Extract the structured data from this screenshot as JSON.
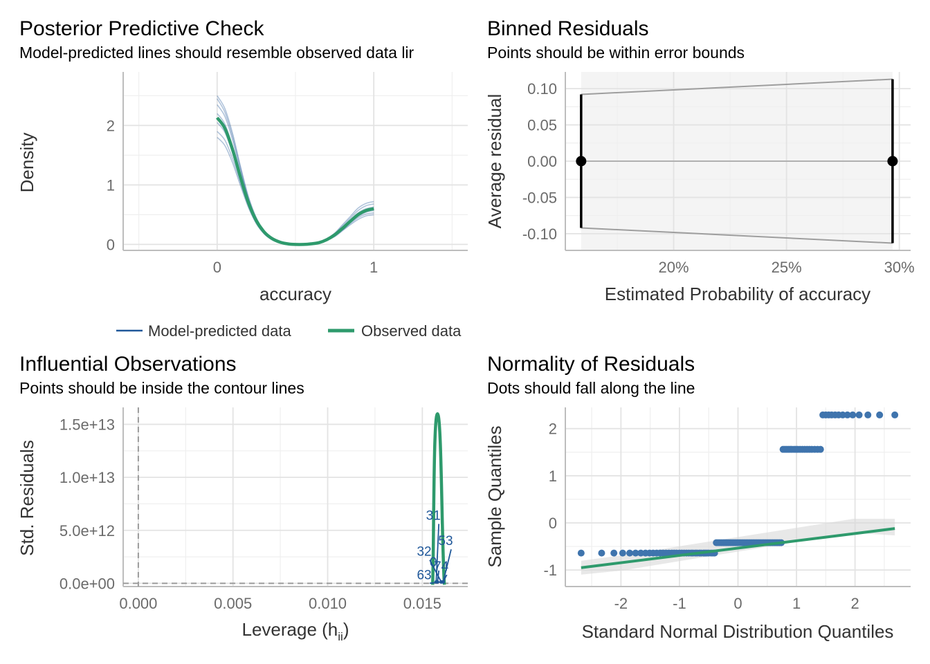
{
  "colors": {
    "model": "#1f5799",
    "observed": "#2e9a6c",
    "grid": "#e3e3e3",
    "axis": "#bdbdbd",
    "tick_text": "#6b6b6b",
    "bound": "#9e9e9e",
    "point": "#3f74ad"
  },
  "chart_data": [
    {
      "id": "ppc",
      "type": "line",
      "title": "Posterior Predictive Check",
      "subtitle": "Model-predicted lines should resemble observed data lir",
      "xlabel": "accuracy",
      "ylabel": "Density",
      "xlim": [
        -0.6,
        1.6
      ],
      "ylim": [
        -0.1,
        2.9
      ],
      "xticks": [
        0,
        1
      ],
      "yticks": [
        0,
        1,
        2
      ],
      "xtick_labels": [
        "0",
        "1"
      ],
      "ytick_labels": [
        "0",
        "1",
        "2"
      ],
      "legend": [
        "Model-predicted data",
        "Observed data"
      ],
      "legend_position": "bottom",
      "x": [
        0,
        0.05,
        0.1,
        0.15,
        0.2,
        0.25,
        0.3,
        0.35,
        0.4,
        0.45,
        0.5,
        0.55,
        0.6,
        0.65,
        0.7,
        0.75,
        0.8,
        0.85,
        0.9,
        0.95,
        1.0
      ],
      "series": [
        {
          "name": "Observed data",
          "values": [
            2.13,
            1.95,
            1.58,
            1.12,
            0.7,
            0.4,
            0.21,
            0.1,
            0.04,
            0.01,
            0.0,
            0.0,
            0.01,
            0.03,
            0.08,
            0.16,
            0.27,
            0.39,
            0.5,
            0.57,
            0.6
          ]
        },
        {
          "name": "Model-predicted data",
          "values": [
            2.5,
            2.28,
            1.85,
            1.3,
            0.8,
            0.45,
            0.22,
            0.1,
            0.04,
            0.01,
            0.0,
            0.0,
            0.01,
            0.03,
            0.07,
            0.14,
            0.24,
            0.35,
            0.45,
            0.51,
            0.53
          ]
        },
        {
          "name": "Model-predicted data",
          "values": [
            2.35,
            2.15,
            1.74,
            1.22,
            0.75,
            0.42,
            0.21,
            0.1,
            0.04,
            0.01,
            0.0,
            0.0,
            0.01,
            0.03,
            0.08,
            0.15,
            0.26,
            0.37,
            0.47,
            0.54,
            0.57
          ]
        },
        {
          "name": "Model-predicted data",
          "values": [
            2.2,
            2.02,
            1.63,
            1.15,
            0.71,
            0.4,
            0.2,
            0.09,
            0.04,
            0.01,
            0.0,
            0.0,
            0.01,
            0.03,
            0.08,
            0.16,
            0.27,
            0.39,
            0.5,
            0.57,
            0.6
          ]
        },
        {
          "name": "Model-predicted data",
          "values": [
            2.05,
            1.88,
            1.52,
            1.08,
            0.67,
            0.38,
            0.19,
            0.09,
            0.03,
            0.01,
            0.0,
            0.0,
            0.01,
            0.04,
            0.09,
            0.17,
            0.29,
            0.41,
            0.53,
            0.6,
            0.63
          ]
        },
        {
          "name": "Model-predicted data",
          "values": [
            1.9,
            1.75,
            1.43,
            1.02,
            0.64,
            0.36,
            0.18,
            0.08,
            0.03,
            0.01,
            0.0,
            0.0,
            0.01,
            0.04,
            0.09,
            0.18,
            0.31,
            0.44,
            0.57,
            0.65,
            0.68
          ]
        },
        {
          "name": "Model-predicted data",
          "values": [
            1.8,
            1.66,
            1.36,
            0.98,
            0.62,
            0.35,
            0.18,
            0.08,
            0.03,
            0.01,
            0.0,
            0.0,
            0.01,
            0.04,
            0.1,
            0.19,
            0.33,
            0.47,
            0.61,
            0.69,
            0.72
          ]
        },
        {
          "name": "Model-predicted data",
          "values": [
            2.45,
            2.22,
            1.8,
            1.27,
            0.78,
            0.43,
            0.21,
            0.1,
            0.04,
            0.01,
            0.0,
            0.0,
            0.01,
            0.03,
            0.07,
            0.13,
            0.23,
            0.33,
            0.42,
            0.48,
            0.5
          ]
        },
        {
          "name": "Model-predicted data",
          "values": [
            2.12,
            1.94,
            1.57,
            1.11,
            0.69,
            0.39,
            0.2,
            0.09,
            0.04,
            0.01,
            0.0,
            0.0,
            0.01,
            0.03,
            0.08,
            0.16,
            0.28,
            0.4,
            0.51,
            0.58,
            0.61
          ]
        }
      ]
    },
    {
      "id": "binned",
      "type": "scatter",
      "title": "Binned Residuals",
      "subtitle": "Points should be within error bounds",
      "xlabel": "Estimated Probability of accuracy",
      "ylabel": "Average residual",
      "xlim": [
        0.152,
        0.305
      ],
      "ylim": [
        -0.123,
        0.123
      ],
      "xticks": [
        0.2,
        0.25,
        0.3
      ],
      "xtick_labels": [
        "20%",
        "25%",
        "30%"
      ],
      "yticks": [
        0.1,
        0.05,
        0.0,
        -0.05,
        -0.1
      ],
      "ytick_labels": [
        "0.10",
        "0.05",
        "0.00",
        "-0.05",
        "-0.10"
      ],
      "points": [
        {
          "x": 0.159,
          "y": 0.0,
          "ci": [
            -0.092,
            0.092
          ]
        },
        {
          "x": 0.297,
          "y": 0.0,
          "ci": [
            -0.113,
            0.113
          ]
        }
      ]
    },
    {
      "id": "influential",
      "type": "scatter",
      "title": "Influential Observations",
      "subtitle": "Points should be inside the contour lines",
      "xlabel": "Leverage (h",
      "xlabel_sub": "ii",
      "xlabel_close": ")",
      "ylabel": "Std. Residuals",
      "xlim": [
        -0.0008,
        0.0174
      ],
      "ylim": [
        -300000000000.0,
        16600000000000.0
      ],
      "xticks": [
        0,
        0.005,
        0.01,
        0.015
      ],
      "xtick_labels": [
        "0.000",
        "0.005",
        "0.010",
        "0.015"
      ],
      "yticks": [
        0,
        5000000000000.0,
        10000000000000.0,
        15000000000000.0
      ],
      "ytick_labels": [
        "0.0e+00",
        "5.0e+12",
        "1.0e+13",
        "1.5e+13"
      ],
      "labels": [
        {
          "text": "31",
          "x": 0.01558,
          "y": 6000000000000.0,
          "tx": 0.01573,
          "ty": 0.0
        },
        {
          "text": "53",
          "x": 0.01623,
          "y": 3600000000000.0,
          "tx": 0.0161,
          "ty": 0.0
        },
        {
          "text": "32",
          "x": 0.0151,
          "y": 2600000000000.0,
          "tx": 0.016,
          "ty": 0.0
        },
        {
          "text": "0",
          "x": 0.01558,
          "y": 1600000000000.0,
          "tx": 0.0158,
          "ty": 0.0
        },
        {
          "text": "74",
          "x": 0.016,
          "y": 1200000000000.0,
          "tx": 0.0161,
          "ty": 0.0
        },
        {
          "text": "63",
          "x": 0.0151,
          "y": 400000000000.0,
          "tx": 0.016,
          "ty": 0.0
        }
      ],
      "loess_peak": {
        "x": 0.0158,
        "y": 16000000000000.0
      }
    },
    {
      "id": "qq",
      "type": "scatter",
      "title": "Normality of Residuals",
      "subtitle": "Dots should fall along the line",
      "xlabel": "Standard Normal Distribution Quantiles",
      "ylabel": "Sample Quantiles",
      "xlim": [
        -2.95,
        2.95
      ],
      "ylim": [
        -1.35,
        2.45
      ],
      "xticks": [
        -2,
        -1,
        0,
        1,
        2
      ],
      "xtick_labels": [
        "-2",
        "-1",
        "0",
        "1",
        "2"
      ],
      "yticks": [
        -1,
        0,
        1,
        2
      ],
      "ytick_labels": [
        "-1",
        "0",
        "1",
        "2"
      ],
      "line": {
        "x": [
          -2.68,
          2.68
        ],
        "y": [
          -0.95,
          -0.12
        ]
      },
      "groups": [
        {
          "y": -0.64,
          "x": [
            -2.68,
            -2.33,
            -2.12,
            -1.97,
            -1.85,
            -1.75,
            -1.66,
            -1.58,
            -1.51,
            -1.45,
            -1.39,
            -1.33,
            -1.28,
            -1.23,
            -1.18,
            -1.13,
            -1.09,
            -1.05,
            -1.0,
            -0.96,
            -0.92,
            -0.88,
            -0.84,
            -0.8,
            -0.77,
            -0.73,
            -0.7,
            -0.66,
            -0.63,
            -0.59,
            -0.56,
            -0.53,
            -0.5,
            -0.46,
            -0.43,
            -0.4
          ]
        },
        {
          "y": -0.42,
          "x": [
            -0.37,
            -0.34,
            -0.31,
            -0.28,
            -0.25,
            -0.22,
            -0.19,
            -0.16,
            -0.13,
            -0.1,
            -0.07,
            -0.04,
            -0.01,
            0.02,
            0.05,
            0.08,
            0.11,
            0.14,
            0.17,
            0.2,
            0.23,
            0.26,
            0.29,
            0.32,
            0.35,
            0.38,
            0.41,
            0.44,
            0.47,
            0.5,
            0.53,
            0.56,
            0.59,
            0.62,
            0.65,
            0.68,
            0.71,
            0.74
          ]
        },
        {
          "y": 1.56,
          "x": [
            0.77,
            0.8,
            0.83,
            0.86,
            0.89,
            0.92,
            0.96,
            0.99,
            1.02,
            1.06,
            1.1,
            1.14,
            1.18,
            1.22,
            1.26,
            1.31,
            1.36,
            1.41
          ]
        },
        {
          "y": 2.29,
          "x": [
            1.45,
            1.5,
            1.55,
            1.6,
            1.66,
            1.72,
            1.79,
            1.87,
            1.96,
            2.07,
            2.22,
            2.42,
            2.68
          ]
        }
      ]
    }
  ]
}
